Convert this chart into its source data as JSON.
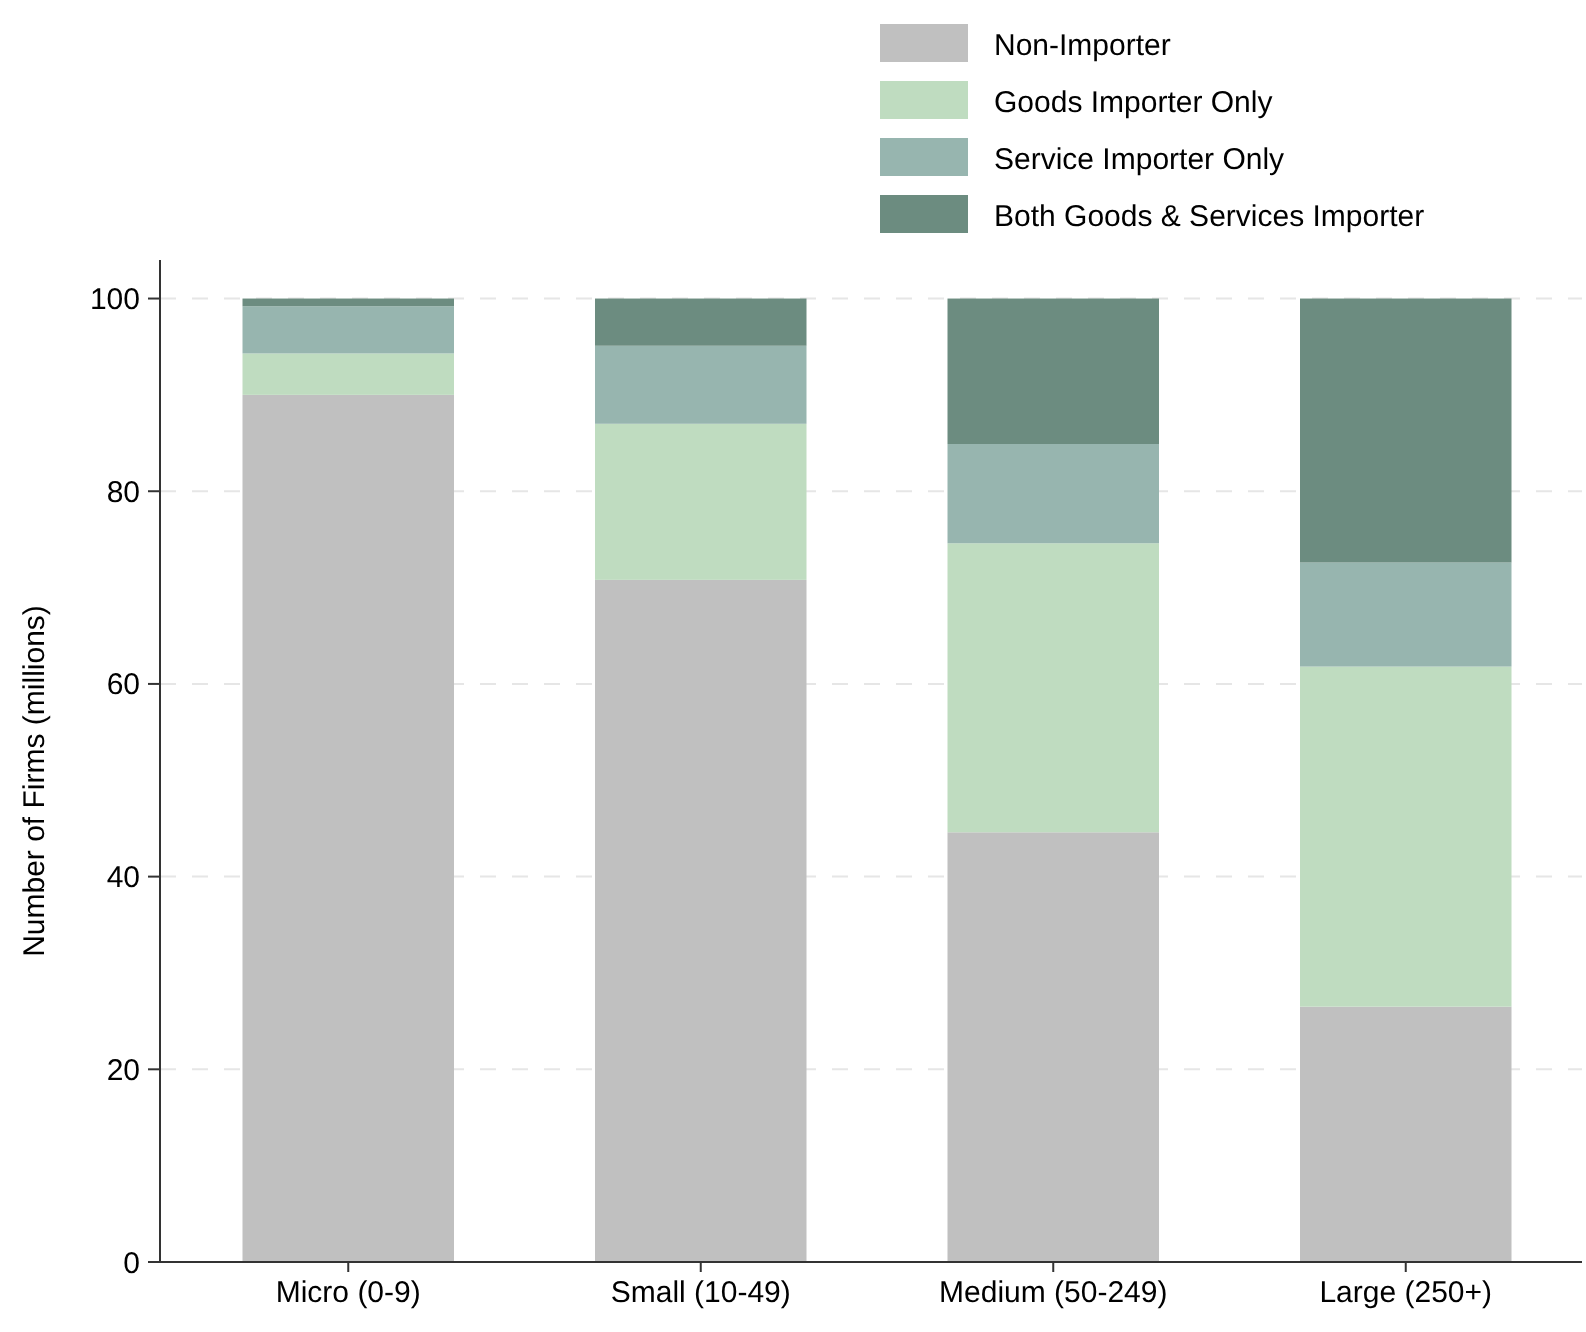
{
  "chart_data": {
    "type": "bar",
    "ylabel": "Number of Firms (millions)",
    "categories": [
      "Micro (0-9)",
      "Small (10-49)",
      "Medium (50-249)",
      "Large (250+)"
    ],
    "stacked": true,
    "series": [
      {
        "name": "Non-Importer",
        "color": "#c0c0c0",
        "values": [
          90.0,
          70.8,
          44.6,
          26.5
        ]
      },
      {
        "name": "Goods Importer Only",
        "color": "#bfdcc0",
        "values": [
          4.3,
          16.2,
          30.0,
          35.3
        ]
      },
      {
        "name": "Service Importer Only",
        "color": "#97b5af",
        "values": [
          4.9,
          8.1,
          10.3,
          10.8
        ]
      },
      {
        "name": "Both Goods & Services Importer",
        "color": "#6c8c80",
        "values": [
          0.8,
          4.9,
          15.1,
          27.4
        ]
      }
    ],
    "ylim": [
      0,
      104
    ],
    "yticks": [
      0,
      20,
      40,
      60,
      80,
      100
    ],
    "grid": "y",
    "legend": "top right"
  }
}
